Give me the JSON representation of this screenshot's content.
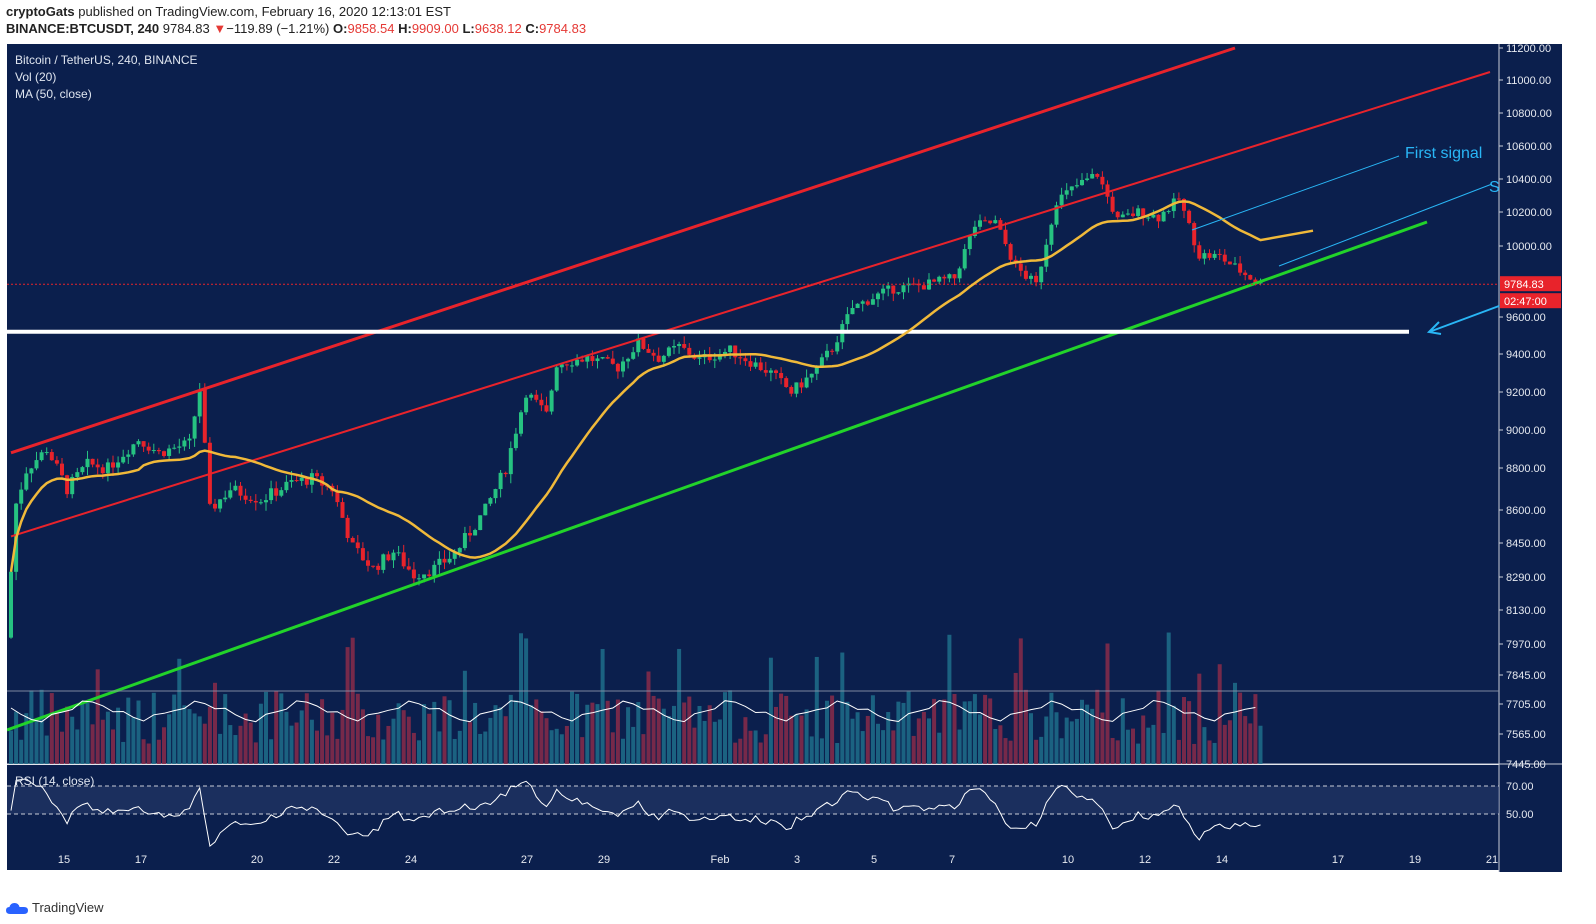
{
  "header": {
    "author": "cryptoGats",
    "published_text": "published on TradingView.com, February 16, 2020 12:13:01 EST",
    "symbol": "BINANCE:BTCUSDT, 240",
    "last_price": "9784.83",
    "change_arrow": "▼",
    "change": "−119.89 (−1.21%)",
    "open_label": "O:",
    "open": "9858.54",
    "high_label": "H:",
    "high": "9909.00",
    "low_label": "L:",
    "low": "9638.12",
    "close_label": "C:",
    "close": "9784.83"
  },
  "overlay": {
    "title": "Bitcoin / TetherUS, 240, BINANCE",
    "volume": "Vol (20)",
    "ma": "MA (50, close)",
    "rsi": "RSI (14, close)",
    "first_signal": "First signal",
    "second_signal_partial": "S",
    "current_price_tag": "9784.83",
    "countdown_tag": "02:47:00"
  },
  "footer": {
    "brand": "TradingView"
  },
  "colors": {
    "background": "#0b1f4d",
    "up_candle": "#26c281",
    "down_candle": "#e8232b",
    "ma_line": "#f0b93a",
    "channel_red": "#e8232b",
    "support_green": "#22d32a",
    "resistance_white": "#ffffff",
    "annotation_cyan": "#29b6f6"
  },
  "chart_data": {
    "type": "candlestick",
    "title": "Bitcoin / TetherUS, 240, BINANCE",
    "y_axis_ticks": [
      "11200.00",
      "11000.00",
      "10800.00",
      "10600.00",
      "10400.00",
      "10200.00",
      "10000.00",
      "9600.00",
      "9400.00",
      "9200.00",
      "9000.00",
      "8800.00",
      "8600.00",
      "8450.00",
      "8290.00",
      "8130.00",
      "7970.00",
      "7845.00",
      "7705.00",
      "7565.00",
      "7445.00"
    ],
    "x_axis_ticks": [
      "15",
      "17",
      "20",
      "22",
      "24",
      "27",
      "29",
      "Feb",
      "3",
      "5",
      "7",
      "10",
      "12",
      "14",
      "17",
      "19",
      "21"
    ],
    "rsi_ticks": [
      "70.00",
      "50.00"
    ],
    "ylim": [
      7445,
      11200
    ],
    "price_path": [
      [
        0,
        8000
      ],
      [
        1,
        8630
      ],
      [
        2,
        8790
      ],
      [
        4,
        8900
      ],
      [
        6,
        8700
      ],
      [
        8,
        8820
      ],
      [
        10,
        8800
      ],
      [
        13,
        8950
      ],
      [
        15,
        8880
      ],
      [
        18,
        8930
      ],
      [
        19,
        9220
      ],
      [
        20,
        8600
      ],
      [
        22,
        8700
      ],
      [
        25,
        8650
      ],
      [
        28,
        8730
      ],
      [
        30,
        8750
      ],
      [
        32,
        8700
      ],
      [
        34,
        8430
      ],
      [
        36,
        8330
      ],
      [
        38,
        8410
      ],
      [
        40,
        8300
      ],
      [
        42,
        8330
      ],
      [
        44,
        8400
      ],
      [
        47,
        8600
      ],
      [
        49,
        8800
      ],
      [
        51,
        9200
      ],
      [
        53,
        9080
      ],
      [
        54,
        9350
      ],
      [
        57,
        9380
      ],
      [
        60,
        9330
      ],
      [
        62,
        9460
      ],
      [
        64,
        9380
      ],
      [
        66,
        9440
      ],
      [
        68,
        9370
      ],
      [
        71,
        9420
      ],
      [
        73,
        9360
      ],
      [
        75,
        9300
      ],
      [
        77,
        9200
      ],
      [
        79,
        9290
      ],
      [
        81,
        9430
      ],
      [
        83,
        9650
      ],
      [
        85,
        9710
      ],
      [
        87,
        9760
      ],
      [
        90,
        9780
      ],
      [
        93,
        9820
      ],
      [
        95,
        10120
      ],
      [
        97,
        10140
      ],
      [
        99,
        9880
      ],
      [
        101,
        9780
      ],
      [
        103,
        10270
      ],
      [
        105,
        10360
      ],
      [
        107,
        10430
      ],
      [
        109,
        10150
      ],
      [
        111,
        10200
      ],
      [
        113,
        10170
      ],
      [
        115,
        10280
      ],
      [
        117,
        9950
      ],
      [
        119,
        9940
      ],
      [
        121,
        9860
      ],
      [
        123,
        9784.83
      ]
    ],
    "annotations": [
      {
        "label": "Ascending red channel",
        "color": "red"
      },
      {
        "label": "Green support trendline",
        "color": "green"
      },
      {
        "label": "White horizontal level",
        "value": 9520
      },
      {
        "label": "MA (50, close)",
        "color": "orange"
      },
      {
        "label": "First signal",
        "color": "cyan"
      }
    ],
    "current_price": 9784.83,
    "countdown": "02:47:00"
  }
}
